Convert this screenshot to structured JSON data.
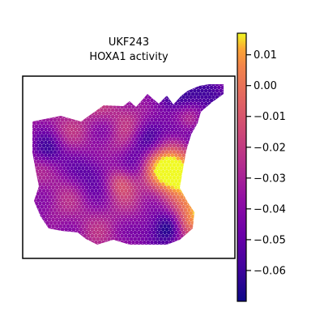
{
  "chart_data": {
    "type": "heatmap",
    "title": "UKF243",
    "subtitle": "HOXA1 activity",
    "xlabel": "",
    "ylabel": "",
    "colorbar": {
      "colormap": "plasma",
      "range": [
        -0.07,
        0.017
      ],
      "ticks": [
        0.01,
        0.0,
        -0.01,
        -0.02,
        -0.03,
        -0.04,
        -0.05,
        -0.06
      ],
      "tick_labels": [
        "0.01",
        "0.00",
        "−0.01",
        "−0.02",
        "−0.03",
        "−0.04",
        "−0.05",
        "−0.06"
      ],
      "placement": "right"
    },
    "axes_ticks": false,
    "description_of_marks": "hexagonal spatial spots forming a tissue section, colored by activity value"
  }
}
